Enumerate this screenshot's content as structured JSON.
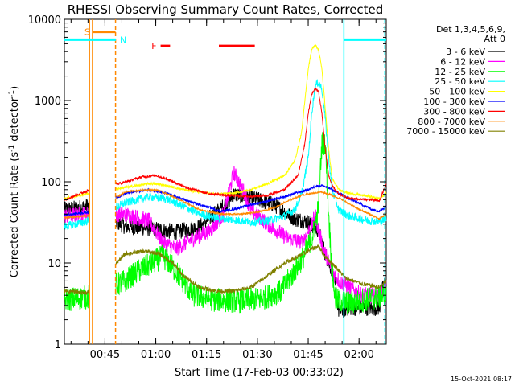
{
  "chart_data": {
    "type": "line",
    "title": "RHESSI Observing Summary Count Rates, Corrected",
    "xlabel": "Start Time (17-Feb-03 00:33:02)",
    "ylabel": "Corrected Count Rate (s",
    "ylabel_sup1": "-1",
    "ylabel_mid": " detector",
    "ylabel_sup2": "-1",
    "ylabel_end": ")",
    "yscale": "log",
    "ylim": [
      1,
      10000
    ],
    "xlim_minutes": [
      0,
      95
    ],
    "x_ticks": [
      {
        "label": "00:45",
        "minute": 11.97
      },
      {
        "label": "01:00",
        "minute": 26.97
      },
      {
        "label": "01:15",
        "minute": 41.97
      },
      {
        "label": "01:30",
        "minute": 56.97
      },
      {
        "label": "01:45",
        "minute": 71.97
      },
      {
        "label": "02:00",
        "minute": 86.97
      }
    ],
    "y_ticks": [
      {
        "label": "1",
        "value": 1
      },
      {
        "label": "10",
        "value": 10
      },
      {
        "label": "100",
        "value": 100
      },
      {
        "label": "1000",
        "value": 1000
      },
      {
        "label": "10000",
        "value": 10000
      }
    ],
    "legend_header": [
      "Det 1,3,4,5,6,9,",
      "Att 0"
    ],
    "legend_position": "right",
    "series": [
      {
        "name": "3 - 6 keV",
        "color": "#000000",
        "noise": 0.2,
        "points": [
          [
            0,
            45
          ],
          [
            7,
            50
          ],
          [
            18,
            28
          ],
          [
            24,
            27
          ],
          [
            33,
            24
          ],
          [
            40,
            28
          ],
          [
            48,
            55
          ],
          [
            50,
            70
          ],
          [
            56,
            62
          ],
          [
            62,
            52
          ],
          [
            68,
            35
          ],
          [
            72,
            32
          ],
          [
            75,
            25
          ],
          [
            77,
            13
          ],
          [
            79,
            8
          ],
          [
            80,
            5
          ],
          [
            81,
            2.5
          ],
          [
            82,
            2.6
          ],
          [
            84,
            2.8
          ],
          [
            93,
            2.8
          ],
          [
            94,
            5
          ],
          [
            95,
            6
          ]
        ]
      },
      {
        "name": "6 - 12 keV",
        "color": "#ff00ff",
        "noise": 0.2,
        "points": [
          [
            0,
            38
          ],
          [
            7,
            40
          ],
          [
            18,
            40
          ],
          [
            25,
            33
          ],
          [
            29,
            18
          ],
          [
            33,
            15
          ],
          [
            38,
            20
          ],
          [
            43,
            25
          ],
          [
            47,
            40
          ],
          [
            50,
            130
          ],
          [
            53,
            75
          ],
          [
            55,
            45
          ],
          [
            60,
            30
          ],
          [
            66,
            20
          ],
          [
            70,
            18
          ],
          [
            73,
            28
          ],
          [
            74,
            40
          ],
          [
            75,
            25
          ],
          [
            77,
            13
          ],
          [
            79,
            8
          ],
          [
            81,
            6
          ],
          [
            84,
            5
          ],
          [
            88,
            4
          ],
          [
            93,
            4
          ],
          [
            95,
            5
          ]
        ]
      },
      {
        "name": "12 - 25 keV",
        "color": "#00ff00",
        "noise": 0.3,
        "points": [
          [
            0,
            3.5
          ],
          [
            7,
            3.8
          ],
          [
            18,
            6
          ],
          [
            22,
            8
          ],
          [
            26,
            10
          ],
          [
            29,
            12
          ],
          [
            31,
            10
          ],
          [
            35,
            6
          ],
          [
            38,
            4
          ],
          [
            44,
            3.5
          ],
          [
            52,
            3.4
          ],
          [
            58,
            3.6
          ],
          [
            64,
            4.5
          ],
          [
            68,
            8
          ],
          [
            71,
            13
          ],
          [
            73,
            20
          ],
          [
            74,
            28
          ],
          [
            75,
            50
          ],
          [
            76,
            300
          ],
          [
            77,
            300
          ],
          [
            78,
            40
          ],
          [
            79,
            8
          ],
          [
            80,
            3.5
          ],
          [
            84,
            3.2
          ],
          [
            93,
            3.8
          ],
          [
            95,
            4.2
          ]
        ]
      },
      {
        "name": "25 - 50 keV",
        "color": "#00ffff",
        "noise": 0.1,
        "points": [
          [
            0,
            28
          ],
          [
            7,
            33
          ],
          [
            18,
            55
          ],
          [
            25,
            65
          ],
          [
            30,
            62
          ],
          [
            35,
            50
          ],
          [
            40,
            40
          ],
          [
            45,
            36
          ],
          [
            50,
            34
          ],
          [
            55,
            32
          ],
          [
            60,
            33
          ],
          [
            65,
            38
          ],
          [
            68,
            45
          ],
          [
            70,
            70
          ],
          [
            72,
            200
          ],
          [
            73,
            700
          ],
          [
            74,
            1500
          ],
          [
            75,
            1700
          ],
          [
            76,
            1400
          ],
          [
            77,
            600
          ],
          [
            78,
            200
          ],
          [
            79,
            80
          ],
          [
            81,
            45
          ],
          [
            84,
            38
          ],
          [
            90,
            33
          ],
          [
            93,
            32
          ],
          [
            95,
            35
          ]
        ]
      },
      {
        "name": "50 - 100 keV",
        "color": "#ffff00",
        "noise": 0.03,
        "points": [
          [
            0,
            62
          ],
          [
            7,
            72
          ],
          [
            18,
            85
          ],
          [
            25,
            95
          ],
          [
            29,
            92
          ],
          [
            35,
            80
          ],
          [
            40,
            75
          ],
          [
            45,
            70
          ],
          [
            50,
            72
          ],
          [
            55,
            80
          ],
          [
            60,
            95
          ],
          [
            65,
            120
          ],
          [
            68,
            180
          ],
          [
            70,
            400
          ],
          [
            71,
            1000
          ],
          [
            72,
            2500
          ],
          [
            73,
            4300
          ],
          [
            74,
            4800
          ],
          [
            75,
            4200
          ],
          [
            76,
            2500
          ],
          [
            77,
            800
          ],
          [
            78,
            250
          ],
          [
            79,
            110
          ],
          [
            81,
            80
          ],
          [
            84,
            72
          ],
          [
            90,
            66
          ],
          [
            93,
            62
          ],
          [
            95,
            72
          ]
        ]
      },
      {
        "name": "100 - 300 keV",
        "color": "#0000ff",
        "noise": 0.03,
        "points": [
          [
            0,
            39
          ],
          [
            7,
            42
          ],
          [
            18,
            72
          ],
          [
            25,
            80
          ],
          [
            30,
            72
          ],
          [
            38,
            55
          ],
          [
            43,
            48
          ],
          [
            46,
            43
          ],
          [
            50,
            46
          ],
          [
            55,
            52
          ],
          [
            60,
            58
          ],
          [
            65,
            65
          ],
          [
            68,
            72
          ],
          [
            72,
            80
          ],
          [
            74,
            88
          ],
          [
            76,
            90
          ],
          [
            78,
            84
          ],
          [
            81,
            72
          ],
          [
            84,
            62
          ],
          [
            88,
            52
          ],
          [
            91,
            45
          ],
          [
            93,
            43
          ],
          [
            95,
            50
          ]
        ]
      },
      {
        "name": "300 - 800 keV",
        "color": "#ff0000",
        "noise": 0.03,
        "points": [
          [
            0,
            60
          ],
          [
            7,
            78
          ],
          [
            18,
            100
          ],
          [
            23,
            115
          ],
          [
            27,
            120
          ],
          [
            31,
            105
          ],
          [
            36,
            85
          ],
          [
            42,
            72
          ],
          [
            48,
            68
          ],
          [
            55,
            66
          ],
          [
            60,
            68
          ],
          [
            65,
            80
          ],
          [
            69,
            120
          ],
          [
            71,
            300
          ],
          [
            72,
            700
          ],
          [
            73,
            1200
          ],
          [
            74,
            1400
          ],
          [
            75,
            1300
          ],
          [
            76,
            700
          ],
          [
            77,
            250
          ],
          [
            78,
            120
          ],
          [
            79,
            90
          ],
          [
            81,
            70
          ],
          [
            84,
            62
          ],
          [
            90,
            60
          ],
          [
            93,
            58
          ],
          [
            95,
            95
          ]
        ]
      },
      {
        "name": "800 - 7000 keV",
        "color": "#ff8800",
        "noise": 0.02,
        "points": [
          [
            0,
            36
          ],
          [
            7,
            38
          ],
          [
            18,
            75
          ],
          [
            24,
            80
          ],
          [
            28,
            78
          ],
          [
            34,
            60
          ],
          [
            40,
            45
          ],
          [
            46,
            40
          ],
          [
            52,
            40
          ],
          [
            57,
            42
          ],
          [
            62,
            48
          ],
          [
            66,
            58
          ],
          [
            70,
            68
          ],
          [
            73,
            72
          ],
          [
            76,
            75
          ],
          [
            79,
            68
          ],
          [
            82,
            60
          ],
          [
            86,
            48
          ],
          [
            90,
            40
          ],
          [
            93,
            35
          ],
          [
            95,
            40
          ]
        ]
      },
      {
        "name": "7000 - 15000 keV",
        "color": "#808000",
        "noise": 0.05,
        "points": [
          [
            0,
            4.5
          ],
          [
            7,
            4.3
          ],
          [
            18,
            13
          ],
          [
            24,
            14
          ],
          [
            28,
            13
          ],
          [
            32,
            10
          ],
          [
            35,
            7
          ],
          [
            40,
            5
          ],
          [
            45,
            4.5
          ],
          [
            50,
            4.5
          ],
          [
            55,
            5
          ],
          [
            60,
            7
          ],
          [
            65,
            10
          ],
          [
            69,
            12
          ],
          [
            73,
            15
          ],
          [
            75,
            16
          ],
          [
            77,
            12
          ],
          [
            80,
            9
          ],
          [
            83,
            6.5
          ],
          [
            88,
            5.5
          ],
          [
            93,
            5
          ],
          [
            95,
            6
          ]
        ]
      }
    ],
    "data_gaps_minutes": [
      [
        7.4,
        15.2
      ]
    ],
    "annotations": {
      "S": {
        "label": "S",
        "color": "#ff8800",
        "x": [
          8.3,
          15.1
        ],
        "y": 7000
      },
      "N": {
        "label": "N",
        "color": "#00ffff",
        "segments": [
          [
            0,
            15.2
          ],
          [
            82.5,
            95
          ]
        ],
        "y": 5600
      },
      "F": {
        "label": "F",
        "color": "#ff0000",
        "segments": [
          [
            28.4,
            31.2
          ],
          [
            45.6,
            56.2
          ]
        ],
        "y": 4700
      }
    },
    "vertical_markers": [
      {
        "minute": 7.4,
        "color": "#ff8800",
        "style": "solid"
      },
      {
        "minute": 8.3,
        "color": "#ff8800",
        "style": "solid"
      },
      {
        "minute": 15.1,
        "color": "#ff8800",
        "style": "dashed"
      },
      {
        "minute": 82.5,
        "color": "#00ffff",
        "style": "solid"
      },
      {
        "minute": 94.6,
        "color": "#00ffff",
        "style": "dashed"
      }
    ]
  },
  "footer": {
    "timestamp": "15-Oct-2021 08:17"
  }
}
